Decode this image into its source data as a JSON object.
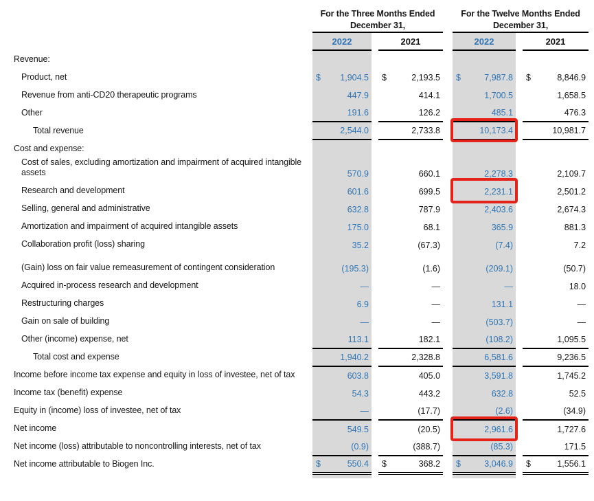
{
  "table": {
    "currency": "$",
    "colors": {
      "accent_blue": "#2E75B6",
      "column_shade_gray": "#D9D9D9",
      "highlight_red": "#E5231B"
    },
    "groups": [
      {
        "title": "For the Three Months Ended December 31,"
      },
      {
        "title": "For the Twelve Months Ended December 31,"
      }
    ],
    "year_headers": [
      "2022",
      "2021",
      "2022",
      "2021"
    ],
    "rows": [
      {
        "label": "Revenue:",
        "indent": 0,
        "section": true
      },
      {
        "label": "Product, net",
        "indent": 1,
        "dollar": true,
        "values": [
          "1,904.5",
          "2,193.5",
          "7,987.8",
          "8,846.9"
        ]
      },
      {
        "label": "Revenue from anti-CD20 therapeutic programs",
        "indent": 1,
        "values": [
          "447.9",
          "414.1",
          "1,700.5",
          "1,658.5"
        ]
      },
      {
        "label": "Other",
        "indent": 1,
        "values": [
          "191.6",
          "126.2",
          "485.1",
          "476.3"
        ]
      },
      {
        "label": "Total revenue",
        "indent": 2,
        "values": [
          "2,544.0",
          "2,733.8",
          "10,173.4",
          "10,981.7"
        ],
        "border": "top-bottom",
        "highlight": [
          2
        ]
      },
      {
        "label": "Cost and expense:",
        "indent": 0,
        "section": true
      },
      {
        "label": "Cost of sales, excluding amortization and impairment of acquired intangible assets",
        "indent": 1,
        "values": [
          "570.9",
          "660.1",
          "2,278.3",
          "2,109.7"
        ]
      },
      {
        "label": "Research and development",
        "indent": 1,
        "values": [
          "601.6",
          "699.5",
          "2,231.1",
          "2,501.2"
        ],
        "highlight": [
          2
        ]
      },
      {
        "label": "Selling, general and administrative",
        "indent": 1,
        "values": [
          "632.8",
          "787.9",
          "2,403.6",
          "2,674.3"
        ]
      },
      {
        "label": "Amortization and impairment of acquired intangible assets",
        "indent": 1,
        "values": [
          "175.0",
          "68.1",
          "365.9",
          "881.3"
        ]
      },
      {
        "label": "Collaboration profit (loss) sharing",
        "indent": 1,
        "values": [
          "35.2",
          "(67.3)",
          "(7.4)",
          "7.2"
        ]
      },
      {
        "label": "(Gain) loss on fair value remeasurement of contingent consideration",
        "indent": 1,
        "gap": true,
        "values": [
          "(195.3)",
          "(1.6)",
          "(209.1)",
          "(50.7)"
        ]
      },
      {
        "label": "Acquired in-process research and development",
        "indent": 1,
        "values": [
          "—",
          "—",
          "—",
          "18.0"
        ]
      },
      {
        "label": "Restructuring charges",
        "indent": 1,
        "values": [
          "6.9",
          "—",
          "131.1",
          "—"
        ]
      },
      {
        "label": "Gain on sale of building",
        "indent": 1,
        "values": [
          "—",
          "—",
          "(503.7)",
          "—"
        ]
      },
      {
        "label": "Other (income) expense, net",
        "indent": 1,
        "values": [
          "113.1",
          "182.1",
          "(108.2)",
          "1,095.5"
        ],
        "border": "bottom"
      },
      {
        "label": "Total cost and expense",
        "indent": 2,
        "values": [
          "1,940.2",
          "2,328.8",
          "6,581.6",
          "9,236.5"
        ],
        "border": "bottom"
      },
      {
        "label": "Income before income tax expense and equity in loss of investee, net of tax",
        "indent": 0,
        "values": [
          "603.8",
          "405.0",
          "3,591.8",
          "1,745.2"
        ]
      },
      {
        "label": "Income tax (benefit) expense",
        "indent": 0,
        "values": [
          "54.3",
          "443.2",
          "632.8",
          "52.5"
        ]
      },
      {
        "label": "Equity in (income) loss of investee, net of tax",
        "indent": 0,
        "values": [
          "—",
          "(17.7)",
          "(2.6)",
          "(34.9)"
        ],
        "border": "bottom"
      },
      {
        "label": "Net income",
        "indent": 0,
        "values": [
          "549.5",
          "(20.5)",
          "2,961.6",
          "1,727.6"
        ],
        "highlight": [
          2
        ]
      },
      {
        "label": "Net income (loss) attributable to noncontrolling interests, net of tax",
        "indent": 0,
        "values": [
          "(0.9)",
          "(388.7)",
          "(85.3)",
          "171.5"
        ],
        "border": "bottom"
      },
      {
        "label": "Net income attributable to Biogen Inc.",
        "indent": 0,
        "dollar": true,
        "values": [
          "550.4",
          "368.2",
          "3,046.9",
          "1,556.1"
        ],
        "border": "double"
      }
    ]
  }
}
